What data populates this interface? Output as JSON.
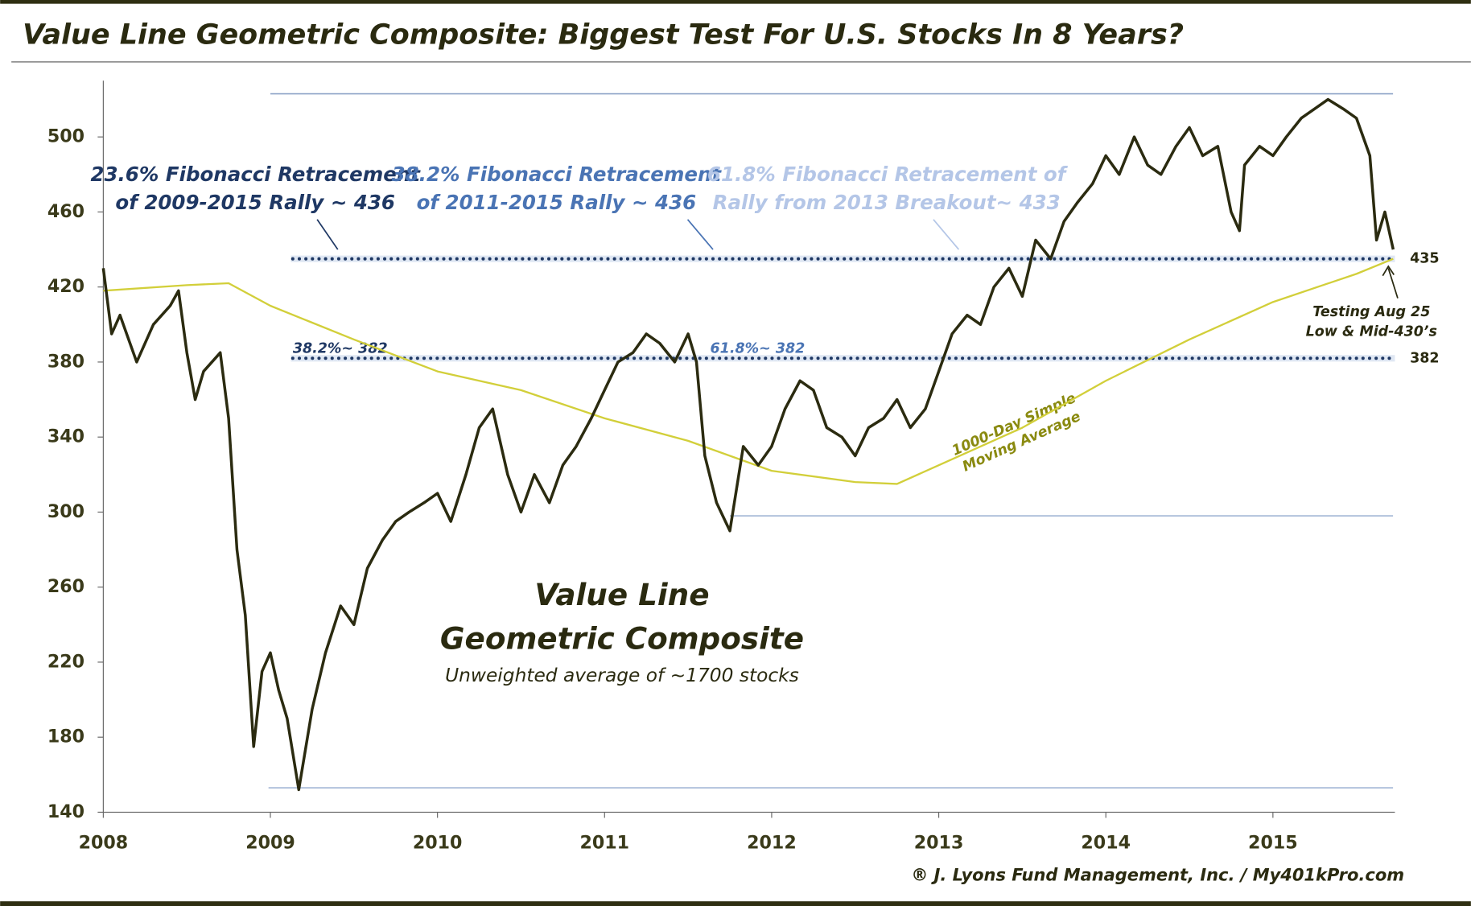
{
  "chart_data": {
    "type": "line",
    "title": "Value Line Geometric Composite: Biggest Test For U.S. Stocks In 8 Years?",
    "inner_title": [
      "Value Line",
      "Geometric Composite"
    ],
    "inner_subtitle": "Unweighted average of ~1700 stocks",
    "credit": "® J. Lyons Fund Management, Inc. / My401kPro.com",
    "xlim": [
      2008,
      2015.73
    ],
    "xticks": [
      2008,
      2009,
      2010,
      2011,
      2012,
      2013,
      2014,
      2015
    ],
    "ylim": [
      140,
      530
    ],
    "yticks": [
      140,
      180,
      220,
      260,
      300,
      340,
      380,
      420,
      460,
      500
    ],
    "series": [
      {
        "name": "Value Line Geometric Composite",
        "color": "#2b2b10",
        "x": [
          2008.0,
          2008.05,
          2008.1,
          2008.2,
          2008.3,
          2008.4,
          2008.45,
          2008.5,
          2008.55,
          2008.6,
          2008.7,
          2008.75,
          2008.8,
          2008.85,
          2008.9,
          2008.95,
          2009.0,
          2009.05,
          2009.1,
          2009.17,
          2009.25,
          2009.33,
          2009.42,
          2009.5,
          2009.58,
          2009.67,
          2009.75,
          2009.83,
          2009.92,
          2010.0,
          2010.08,
          2010.17,
          2010.25,
          2010.33,
          2010.42,
          2010.5,
          2010.58,
          2010.67,
          2010.75,
          2010.83,
          2010.92,
          2011.0,
          2011.08,
          2011.17,
          2011.25,
          2011.33,
          2011.42,
          2011.5,
          2011.55,
          2011.6,
          2011.67,
          2011.75,
          2011.83,
          2011.92,
          2012.0,
          2012.08,
          2012.17,
          2012.25,
          2012.33,
          2012.42,
          2012.5,
          2012.58,
          2012.67,
          2012.75,
          2012.83,
          2012.92,
          2013.0,
          2013.08,
          2013.17,
          2013.25,
          2013.33,
          2013.42,
          2013.5,
          2013.58,
          2013.67,
          2013.75,
          2013.83,
          2013.92,
          2014.0,
          2014.08,
          2014.17,
          2014.25,
          2014.33,
          2014.42,
          2014.5,
          2014.58,
          2014.67,
          2014.75,
          2014.8,
          2014.83,
          2014.92,
          2015.0,
          2015.08,
          2015.17,
          2015.25,
          2015.33,
          2015.42,
          2015.5,
          2015.58,
          2015.62,
          2015.67,
          2015.72
        ],
        "values": [
          430,
          395,
          405,
          380,
          400,
          410,
          418,
          385,
          360,
          375,
          385,
          350,
          280,
          245,
          175,
          215,
          225,
          205,
          190,
          152,
          195,
          225,
          250,
          240,
          270,
          285,
          295,
          300,
          305,
          310,
          295,
          320,
          345,
          355,
          320,
          300,
          320,
          305,
          325,
          335,
          350,
          365,
          380,
          385,
          395,
          390,
          380,
          395,
          380,
          330,
          305,
          290,
          335,
          325,
          335,
          355,
          370,
          365,
          345,
          340,
          330,
          345,
          350,
          360,
          345,
          355,
          375,
          395,
          405,
          400,
          420,
          430,
          415,
          445,
          435,
          455,
          465,
          475,
          490,
          480,
          500,
          485,
          480,
          495,
          505,
          490,
          495,
          460,
          450,
          485,
          495,
          490,
          500,
          510,
          515,
          520,
          515,
          510,
          490,
          445,
          460,
          440
        ]
      },
      {
        "name": "1000-Day Simple Moving Average",
        "color": "#d2cf3a",
        "x": [
          2008.0,
          2008.5,
          2008.75,
          2009.0,
          2009.5,
          2010.0,
          2010.5,
          2011.0,
          2011.5,
          2012.0,
          2012.5,
          2012.75,
          2013.0,
          2013.5,
          2014.0,
          2014.5,
          2015.0,
          2015.5,
          2015.72
        ],
        "values": [
          418,
          421,
          422,
          410,
          392,
          375,
          365,
          350,
          338,
          322,
          316,
          315,
          325,
          345,
          370,
          392,
          412,
          427,
          435
        ]
      }
    ],
    "levels": [
      {
        "value": 435,
        "label": "435"
      },
      {
        "value": 382,
        "label": "382"
      }
    ],
    "range_lines": [
      523,
      298,
      153
    ],
    "annotations": {
      "fib1": [
        "23.6% Fibonacci Retracement",
        "of 2009-2015 Rally ~ 436"
      ],
      "fib2": [
        "38.2% Fibonacci Retracement",
        "of 2011-2015 Rally ~ 436"
      ],
      "fib3": [
        "61.8% Fibonacci Retracement of",
        "Rally from 2013 Breakout~ 433"
      ],
      "low1": "38.2%~ 382",
      "low2": "61.8%~ 382",
      "test": [
        "Testing Aug 25",
        "Low & Mid-430’s"
      ],
      "ma": [
        "1000-Day Simple",
        "Moving Average"
      ]
    }
  }
}
